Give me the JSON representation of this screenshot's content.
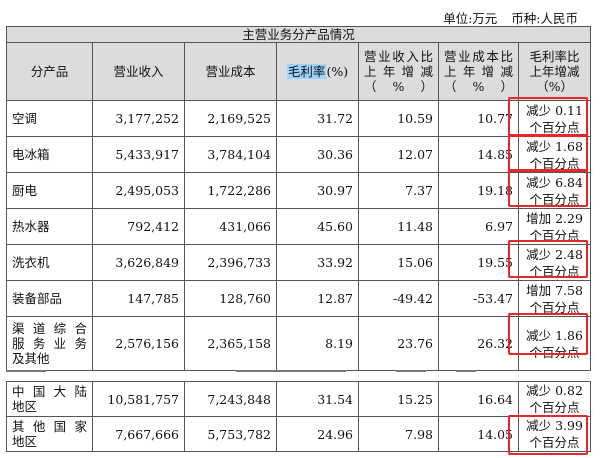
{
  "unit_label": "单位:万元",
  "currency_label": "币种:人民币",
  "section_title": "主营业务分产品情况",
  "headers": {
    "product": "分产品",
    "revenue": "营业收入",
    "cost": "营业成本",
    "gross_margin_highlight": "毛利率",
    "gross_margin_unit": "(%)",
    "revenue_yoy": "营业收入比上年增减（%）",
    "cost_yoy": "营业成本比上年增减（%）",
    "gm_change": "毛利率比上年增减（%）"
  },
  "products": [
    {
      "name": "空调",
      "revenue": "3,177,252",
      "cost": "2,169,525",
      "gross_margin": "31.72",
      "revenue_yoy": "10.59",
      "cost_yoy": "10.77",
      "gm_change_line1": "减少 0.11",
      "gm_change_line2": "个百分点"
    },
    {
      "name": "电冰箱",
      "revenue": "5,433,917",
      "cost": "3,784,104",
      "gross_margin": "30.36",
      "revenue_yoy": "12.07",
      "cost_yoy": "14.85",
      "gm_change_line1": "减少 1.68",
      "gm_change_line2": "个百分点"
    },
    {
      "name": "厨电",
      "revenue": "2,495,053",
      "cost": "1,722,286",
      "gross_margin": "30.97",
      "revenue_yoy": "7.37",
      "cost_yoy": "19.18",
      "gm_change_line1": "减少 6.84",
      "gm_change_line2": "个百分点"
    },
    {
      "name": "热水器",
      "revenue": "792,412",
      "cost": "431,066",
      "gross_margin": "45.60",
      "revenue_yoy": "11.48",
      "cost_yoy": "6.97",
      "gm_change_line1": "增加 2.29",
      "gm_change_line2": "个百分点"
    },
    {
      "name": "洗衣机",
      "revenue": "3,626,849",
      "cost": "2,396,733",
      "gross_margin": "33.92",
      "revenue_yoy": "15.06",
      "cost_yoy": "19.55",
      "gm_change_line1": "减少 2.48",
      "gm_change_line2": "个百分点"
    },
    {
      "name": "装备部品",
      "revenue": "147,785",
      "cost": "128,760",
      "gross_margin": "12.87",
      "revenue_yoy": "-49.42",
      "cost_yoy": "-53.47",
      "gm_change_line1": "增加 7.58",
      "gm_change_line2": "个百分点"
    },
    {
      "name_line1": "渠道综合",
      "name_line2": "服务业务",
      "name_line3": "及其他",
      "revenue": "2,576,156",
      "cost": "2,365,158",
      "gross_margin": "8.19",
      "revenue_yoy": "23.76",
      "cost_yoy": "26.32",
      "gm_change_line1": "减少 1.86",
      "gm_change_line2": "个百分点"
    }
  ],
  "regions": [
    {
      "name_line1": "中国大陆",
      "name_line2": "地区",
      "revenue": "10,581,757",
      "cost": "7,243,848",
      "gross_margin": "31.54",
      "revenue_yoy": "15.25",
      "cost_yoy": "16.64",
      "gm_change_line1": "减少 0.82",
      "gm_change_line2": "个百分点"
    },
    {
      "name_line1": "其他国家",
      "name_line2": "地区",
      "revenue": "7,667,666",
      "cost": "5,753,782",
      "gross_margin": "24.96",
      "revenue_yoy": "7.98",
      "cost_yoy": "14.05",
      "gm_change_line1": "减少 3.99",
      "gm_change_line2": "个百分点"
    }
  ],
  "colors": {
    "highlight_box": "#e8262a",
    "text_highlight": "#9fd3ff",
    "header_bg": "#dcdcdc"
  }
}
